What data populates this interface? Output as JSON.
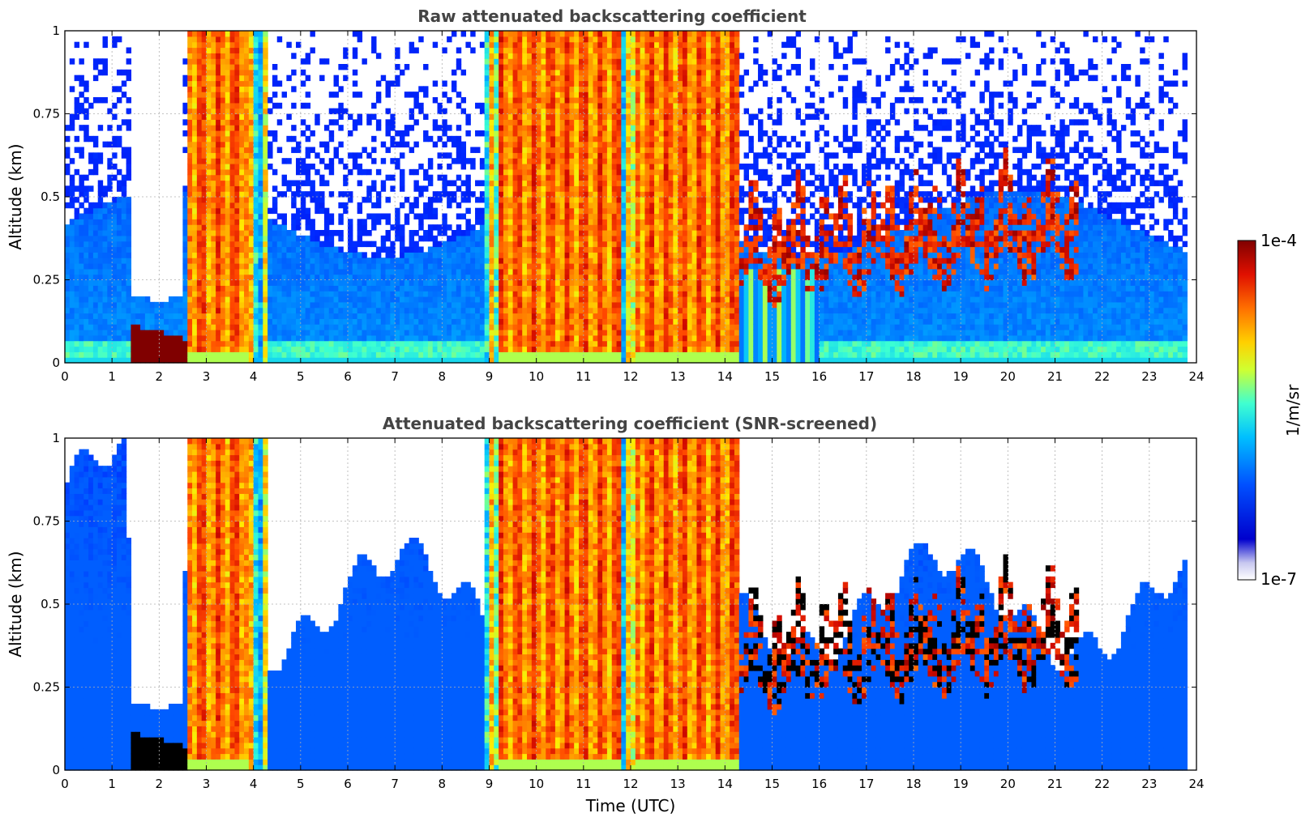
{
  "chart_data": [
    {
      "type": "heatmap",
      "title": "Raw attenuated backscattering coefficient",
      "xlabel": "",
      "ylabel": "Altitude (km)",
      "xlim": [
        0,
        24
      ],
      "ylim": [
        0,
        1
      ],
      "x_ticks": [
        "0",
        "1",
        "2",
        "3",
        "4",
        "5",
        "6",
        "7",
        "8",
        "9",
        "10",
        "11",
        "12",
        "13",
        "14",
        "15",
        "16",
        "17",
        "18",
        "19",
        "20",
        "21",
        "22",
        "23",
        "24"
      ],
      "y_ticks": [
        "0",
        "0.25",
        "0.5",
        "0.75",
        "1"
      ],
      "grid": true,
      "screened": false,
      "colormap": "jet",
      "units": "1/m/sr",
      "value_range": [
        "1e-7",
        "1e-4"
      ],
      "data_end_time": 23.8
    },
    {
      "type": "heatmap",
      "title": "Attenuated backscattering coefficient (SNR-screened)",
      "xlabel": "Time (UTC)",
      "ylabel": "Altitude (km)",
      "xlim": [
        0,
        24
      ],
      "ylim": [
        0,
        1
      ],
      "x_ticks": [
        "0",
        "1",
        "2",
        "3",
        "4",
        "5",
        "6",
        "7",
        "8",
        "9",
        "10",
        "11",
        "12",
        "13",
        "14",
        "15",
        "16",
        "17",
        "18",
        "19",
        "20",
        "21",
        "22",
        "23",
        "24"
      ],
      "y_ticks": [
        "0",
        "0.25",
        "0.5",
        "0.75",
        "1"
      ],
      "grid": true,
      "screened": true,
      "colormap": "jet",
      "units": "1/m/sr",
      "value_range": [
        "1e-7",
        "1e-4"
      ],
      "data_end_time": 23.8
    }
  ],
  "colorbar": {
    "label": "1/m/sr",
    "max_label": "1e-4",
    "min_label": "1e-7",
    "scale": "log",
    "colors": [
      "#ffffff",
      "#0000cd",
      "#0000ff",
      "#1e90ff",
      "#00e5ff",
      "#7fff7f",
      "#ffff00",
      "#ffa500",
      "#ff4500",
      "#8b0000"
    ]
  }
}
